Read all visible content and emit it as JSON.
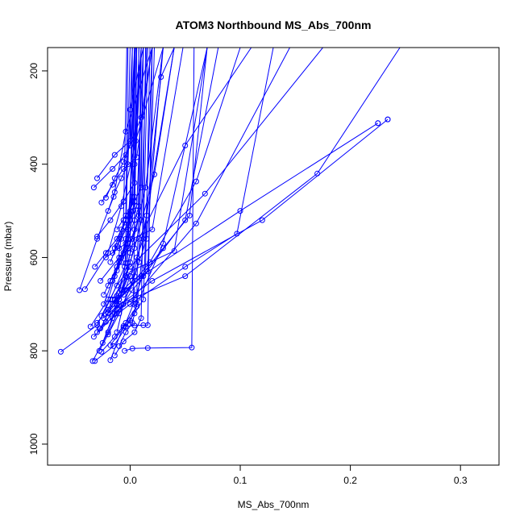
{
  "chart_data": {
    "type": "line",
    "title": "ATOM3 Northbound MS_Abs_700nm",
    "xlabel": "MS_Abs_700nm",
    "ylabel": "Pressure (mbar)",
    "xlim": [
      -0.075,
      0.335
    ],
    "ylim": [
      1045,
      150
    ],
    "y_reversed": true,
    "x_ticks": [
      0.0,
      0.1,
      0.2,
      0.3
    ],
    "x_tick_labels": [
      "0.0",
      "0.1",
      "0.2",
      "0.3"
    ],
    "y_ticks": [
      200,
      400,
      600,
      800,
      1000
    ],
    "y_tick_labels": [
      "200",
      "400",
      "600",
      "800",
      "1000"
    ],
    "grid": false,
    "legend": "none",
    "series_color": "#0000ff",
    "marker": "open-circle",
    "series": [
      {
        "x": [
          -0.063,
          -0.03,
          -0.018,
          -0.005,
          0.01
        ],
        "y": [
          802,
          745,
          690,
          620,
          150
        ]
      },
      {
        "x": [
          -0.034,
          -0.02,
          -0.012,
          -0.003,
          0.005
        ],
        "y": [
          822,
          760,
          702,
          642,
          150
        ]
      },
      {
        "x": [
          -0.032,
          -0.015,
          0.0,
          0.03,
          0.07
        ],
        "y": [
          822,
          790,
          735,
          570,
          150
        ]
      },
      {
        "x": [
          -0.046,
          -0.03,
          -0.015,
          -0.004,
          0.02
        ],
        "y": [
          670,
          560,
          470,
          330,
          150
        ]
      },
      {
        "x": [
          -0.041,
          -0.02,
          -0.008,
          0.005,
          0.03
        ],
        "y": [
          668,
          590,
          490,
          350,
          150
        ]
      },
      {
        "x": [
          -0.033,
          -0.01,
          0.005,
          0.06,
          0.145
        ],
        "y": [
          770,
          712,
          680,
          527,
          150
        ]
      },
      {
        "x": [
          -0.025,
          -0.012,
          0.0,
          0.04,
          0.07
        ],
        "y": [
          783,
          703,
          630,
          586,
          150
        ]
      },
      {
        "x": [
          -0.018,
          -0.006,
          0.006,
          0.028,
          0.04
        ],
        "y": [
          820,
          747,
          705,
          213,
          150
        ]
      },
      {
        "x": [
          -0.03,
          -0.014,
          -0.002,
          0.014,
          0.03
        ],
        "y": [
          740,
          690,
          612,
          450,
          150
        ]
      },
      {
        "x": [
          -0.027,
          -0.012,
          0.002,
          0.015,
          0.04
        ],
        "y": [
          752,
          682,
          650,
          510,
          150
        ]
      },
      {
        "x": [
          -0.02,
          -0.005,
          0.012,
          0.05,
          0.08
        ],
        "y": [
          712,
          670,
          640,
          520,
          150
        ]
      },
      {
        "x": [
          -0.028,
          -0.01,
          0.004,
          0.015,
          0.03
        ],
        "y": [
          800,
          720,
          640,
          560,
          150
        ]
      },
      {
        "x": [
          -0.024,
          -0.003,
          0.018,
          0.06,
          0.1
        ],
        "y": [
          730,
          670,
          610,
          437,
          150
        ]
      },
      {
        "x": [
          -0.033,
          -0.016,
          -0.004,
          0.01,
          0.02
        ],
        "y": [
          450,
          410,
          380,
          300,
          150
        ]
      },
      {
        "x": [
          -0.03,
          -0.014,
          0.0,
          0.0,
          0.012
        ],
        "y": [
          430,
          380,
          350,
          283,
          150
        ]
      },
      {
        "x": [
          -0.027,
          -0.01,
          0.008,
          0.05,
          0.11
        ],
        "y": [
          650,
          600,
          560,
          360,
          150
        ]
      },
      {
        "x": [
          -0.036,
          -0.02,
          -0.012,
          -0.006,
          -0.003
        ],
        "y": [
          748,
          690,
          628,
          520,
          150
        ]
      },
      {
        "x": [
          -0.022,
          -0.012,
          -0.004,
          0.004,
          0.01
        ],
        "y": [
          738,
          700,
          612,
          400,
          150
        ]
      },
      {
        "x": [
          -0.02,
          -0.008,
          0.0,
          0.022,
          0.04
        ],
        "y": [
          718,
          670,
          610,
          422,
          150
        ]
      },
      {
        "x": [
          -0.016,
          -0.004,
          0.004,
          0.01,
          0.015
        ],
        "y": [
          690,
          640,
          580,
          520,
          150
        ]
      },
      {
        "x": [
          -0.026,
          -0.016,
          -0.006,
          0.006,
          0.02
        ],
        "y": [
          482,
          444,
          410,
          385,
          150
        ]
      },
      {
        "x": [
          -0.022,
          -0.014,
          -0.006,
          0.0,
          0.004
        ],
        "y": [
          472,
          430,
          395,
          360,
          150
        ]
      },
      {
        "x": [
          -0.03,
          -0.018,
          -0.006,
          0.004,
          0.01
        ],
        "y": [
          555,
          520,
          480,
          440,
          150
        ]
      },
      {
        "x": [
          -0.026,
          -0.012,
          0.0,
          0.068,
          0.175
        ],
        "y": [
          725,
          660,
          620,
          463,
          150
        ]
      },
      {
        "x": [
          -0.02,
          -0.01,
          -0.002,
          0.003,
          0.006
        ],
        "y": [
          660,
          610,
          570,
          500,
          150
        ]
      },
      {
        "x": [
          -0.014,
          -0.006,
          -0.002,
          0.002,
          0.005
        ],
        "y": [
          640,
          590,
          540,
          470,
          150
        ]
      },
      {
        "x": [
          -0.012,
          -0.004,
          0.0,
          0.004,
          0.008
        ],
        "y": [
          620,
          570,
          520,
          480,
          150
        ]
      },
      {
        "x": [
          -0.024,
          -0.016,
          -0.008,
          -0.004,
          0.0
        ],
        "y": [
          700,
          650,
          600,
          560,
          150
        ]
      },
      {
        "x": [
          -0.018,
          -0.012,
          -0.004,
          0.0,
          0.004
        ],
        "y": [
          610,
          575,
          535,
          510,
          150
        ]
      },
      {
        "x": [
          -0.016,
          -0.008,
          0.0,
          0.006,
          0.012
        ],
        "y": [
          590,
          560,
          520,
          490,
          150
        ]
      },
      {
        "x": [
          -0.02,
          -0.014,
          -0.008,
          -0.002,
          0.002
        ],
        "y": [
          500,
          460,
          430,
          400,
          150
        ]
      },
      {
        "x": [
          -0.01,
          -0.004,
          0.0,
          0.004,
          0.008
        ],
        "y": [
          560,
          520,
          500,
          470,
          150
        ]
      },
      {
        "x": [
          -0.022,
          -0.01,
          0.002,
          0.02,
          0.048
        ],
        "y": [
          600,
          580,
          560,
          540,
          150
        ]
      },
      {
        "x": [
          -0.032,
          -0.022,
          -0.012,
          -0.004,
          -0.002
        ],
        "y": [
          620,
          590,
          560,
          520,
          150
        ]
      },
      {
        "x": [
          -0.016,
          -0.01,
          -0.004,
          0.0,
          0.002
        ],
        "y": [
          730,
          690,
          640,
          590,
          150
        ]
      },
      {
        "x": [
          -0.006,
          0.0,
          0.006,
          0.012,
          0.016
        ],
        "y": [
          680,
          640,
          600,
          560,
          150
        ]
      },
      {
        "x": [
          -0.012,
          -0.006,
          0.002,
          0.008,
          0.012
        ],
        "y": [
          760,
          700,
          650,
          610,
          150
        ]
      },
      {
        "x": [
          -0.026,
          -0.014,
          -0.004,
          0.003,
          0.006
        ],
        "y": [
          802,
          770,
          740,
          700,
          150
        ]
      },
      {
        "x": [
          -0.018,
          -0.006,
          0.004,
          0.012,
          0.02
        ],
        "y": [
          788,
          750,
          720,
          690,
          150
        ]
      },
      {
        "x": [
          -0.014,
          -0.006,
          0.004,
          0.01,
          0.014
        ],
        "y": [
          810,
          780,
          760,
          730,
          150
        ]
      },
      {
        "x": [
          -0.01,
          -0.004,
          0.002,
          0.006,
          0.01
        ],
        "y": [
          790,
          760,
          740,
          700,
          150
        ]
      },
      {
        "x": [
          -0.005,
          0.002,
          0.016,
          0.056,
          0.058
        ],
        "y": [
          800,
          795,
          794,
          793,
          150
        ]
      },
      {
        "x": [
          -0.004,
          0.004,
          0.012,
          0.016,
          0.02
        ],
        "y": [
          748,
          746,
          745,
          745,
          150
        ]
      },
      {
        "x": [
          -0.014,
          -0.006,
          0.004,
          0.014,
          0.018
        ],
        "y": [
          720,
          700,
          690,
          620,
          150
        ]
      },
      {
        "x": [
          -0.02,
          -0.012,
          0.002,
          0.016,
          0.022
        ],
        "y": [
          765,
          720,
          670,
          630,
          150
        ]
      },
      {
        "x": [
          -0.012,
          -0.004,
          0.004,
          0.01,
          0.012
        ],
        "y": [
          540,
          510,
          480,
          450,
          150
        ]
      },
      {
        "x": [
          -0.008,
          -0.002,
          0.004,
          0.008,
          0.01
        ],
        "y": [
          600,
          560,
          520,
          490,
          150
        ]
      },
      {
        "x": [
          -0.024,
          -0.012,
          -0.002,
          0.004,
          0.006
        ],
        "y": [
          680,
          620,
          580,
          540,
          150
        ]
      },
      {
        "x": [
          -0.018,
          -0.008,
          0.002,
          0.008,
          0.01
        ],
        "y": [
          650,
          610,
          560,
          510,
          150
        ]
      },
      {
        "x": [
          -0.014,
          -0.008,
          -0.002,
          0.002,
          0.004
        ],
        "y": [
          580,
          540,
          510,
          480,
          150
        ]
      },
      {
        "x": [
          -0.03,
          -0.01,
          0.05,
          0.17,
          0.245
        ],
        "y": [
          760,
          700,
          640,
          420,
          150
        ]
      },
      {
        "x": [
          -0.028,
          0.0,
          0.05,
          0.097,
          0.13
        ],
        "y": [
          752,
          700,
          620,
          549,
          150
        ]
      },
      {
        "x": [
          -0.02,
          0.02,
          0.12,
          0.234,
          0.234
        ],
        "y": [
          720,
          650,
          520,
          304,
          304
        ]
      },
      {
        "x": [
          -0.016,
          0.01,
          0.1,
          0.225,
          0.225
        ],
        "y": [
          700,
          640,
          500,
          312,
          312
        ]
      },
      {
        "x": [
          -0.01,
          0.01,
          0.03,
          0.054,
          0.07
        ],
        "y": [
          690,
          640,
          580,
          510,
          150
        ]
      }
    ]
  }
}
